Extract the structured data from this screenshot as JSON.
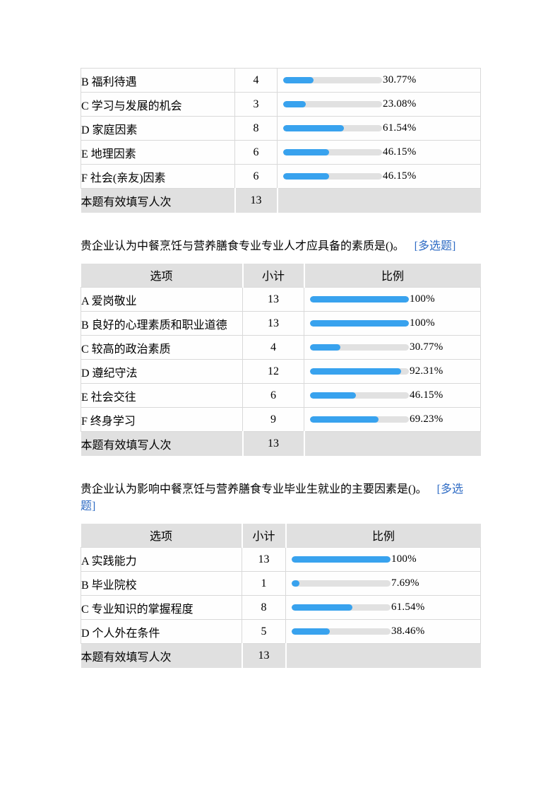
{
  "colors": {
    "bar_fill": "#38a2ee",
    "bar_track": "#e1e1e1",
    "gray_row": "#e0e0e0",
    "border": "#d9d9d9",
    "link": "#2e6bc4"
  },
  "headers": {
    "option": "选项",
    "count": "小计",
    "ratio": "比例"
  },
  "footer_label": "本题有效填写人次",
  "s1": {
    "rows": [
      {
        "label": "B 福利待遇",
        "count": "4",
        "pct": "30.77%",
        "pct_value": 30.77
      },
      {
        "label": "C 学习与发展的机会",
        "count": "3",
        "pct": "23.08%",
        "pct_value": 23.08
      },
      {
        "label": "D 家庭因素",
        "count": "8",
        "pct": "61.54%",
        "pct_value": 61.54
      },
      {
        "label": "E 地理因素",
        "count": "6",
        "pct": "46.15%",
        "pct_value": 46.15
      },
      {
        "label": "F 社会(亲友)因素",
        "count": "6",
        "pct": "46.15%",
        "pct_value": 46.15
      }
    ],
    "footer_count": "13"
  },
  "q2": {
    "title": "贵企业认为中餐烹饪与营养膳食专业专业人才应具备的素质是()。",
    "tag": "[多选题]",
    "rows": [
      {
        "label": "A 爱岗敬业",
        "count": "13",
        "pct": "100%",
        "pct_value": 100
      },
      {
        "label": "B 良好的心理素质和职业道德",
        "count": "13",
        "pct": "100%",
        "pct_value": 100
      },
      {
        "label": "C 较高的政治素质",
        "count": "4",
        "pct": "30.77%",
        "pct_value": 30.77
      },
      {
        "label": "D 遵纪守法",
        "count": "12",
        "pct": "92.31%",
        "pct_value": 92.31
      },
      {
        "label": "E 社会交往",
        "count": "6",
        "pct": "46.15%",
        "pct_value": 46.15
      },
      {
        "label": "F 终身学习",
        "count": "9",
        "pct": "69.23%",
        "pct_value": 69.23
      }
    ],
    "footer_count": "13"
  },
  "q3": {
    "title": "贵企业认为影响中餐烹饪与营养膳食专业毕业生就业的主要因素是()。",
    "tag": "[多选题]",
    "rows": [
      {
        "label": "A 实践能力",
        "count": "13",
        "pct": "100%",
        "pct_value": 100
      },
      {
        "label": "B 毕业院校",
        "count": "1",
        "pct": "7.69%",
        "pct_value": 7.69
      },
      {
        "label": "C 专业知识的掌握程度",
        "count": "8",
        "pct": "61.54%",
        "pct_value": 61.54
      },
      {
        "label": "D 个人外在条件",
        "count": "5",
        "pct": "38.46%",
        "pct_value": 38.46
      }
    ],
    "footer_count": "13"
  }
}
